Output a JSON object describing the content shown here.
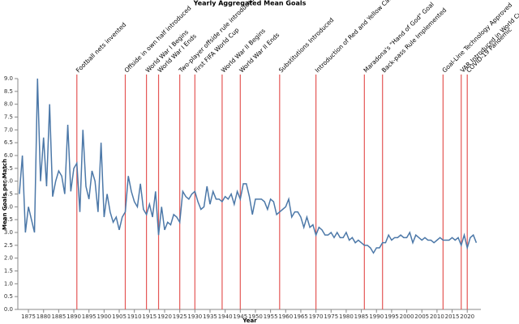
{
  "chart_data": {
    "type": "line",
    "title": "Yearly Aggregated Mean Goals",
    "x_label": "Year",
    "y_label": "Mean Goals per Match",
    "x": [
      1872,
      1873,
      1874,
      1875,
      1876,
      1877,
      1878,
      1879,
      1880,
      1881,
      1882,
      1883,
      1884,
      1885,
      1886,
      1887,
      1888,
      1889,
      1890,
      1891,
      1892,
      1893,
      1894,
      1895,
      1896,
      1897,
      1898,
      1899,
      1900,
      1901,
      1902,
      1903,
      1904,
      1905,
      1906,
      1907,
      1908,
      1909,
      1910,
      1911,
      1912,
      1913,
      1914,
      1915,
      1916,
      1917,
      1918,
      1919,
      1920,
      1921,
      1922,
      1923,
      1924,
      1925,
      1926,
      1927,
      1928,
      1929,
      1930,
      1931,
      1932,
      1933,
      1934,
      1935,
      1936,
      1937,
      1938,
      1939,
      1940,
      1941,
      1942,
      1943,
      1944,
      1945,
      1946,
      1947,
      1948,
      1949,
      1950,
      1951,
      1952,
      1953,
      1954,
      1955,
      1956,
      1957,
      1958,
      1959,
      1960,
      1961,
      1962,
      1963,
      1964,
      1965,
      1966,
      1967,
      1968,
      1969,
      1970,
      1971,
      1972,
      1973,
      1974,
      1975,
      1976,
      1977,
      1978,
      1979,
      1980,
      1981,
      1982,
      1983,
      1984,
      1985,
      1986,
      1987,
      1988,
      1989,
      1990,
      1991,
      1992,
      1993,
      1994,
      1995,
      1996,
      1997,
      1998,
      1999,
      2000,
      2001,
      2002,
      2003,
      2004,
      2005,
      2006,
      2007,
      2008,
      2009,
      2010,
      2011,
      2012,
      2013,
      2014,
      2015,
      2016,
      2017,
      2018,
      2019,
      2020,
      2021,
      2022,
      2023
    ],
    "series": [
      {
        "name": "Mean Goals per Match",
        "color": "#4c78a8",
        "values": [
          4.5,
          6.0,
          3.0,
          4.0,
          3.5,
          3.0,
          9.0,
          5.0,
          6.7,
          4.8,
          8.0,
          4.4,
          5.0,
          5.4,
          5.2,
          4.5,
          7.2,
          4.6,
          5.5,
          5.7,
          3.8,
          7.0,
          4.8,
          4.3,
          5.4,
          5.0,
          3.8,
          6.5,
          3.6,
          4.5,
          3.8,
          3.4,
          3.6,
          3.1,
          3.6,
          3.8,
          5.2,
          4.6,
          4.2,
          4.0,
          4.9,
          3.9,
          3.7,
          4.1,
          3.6,
          4.6,
          2.9,
          4.0,
          3.1,
          3.4,
          3.3,
          3.7,
          3.6,
          3.4,
          4.6,
          4.4,
          4.3,
          4.5,
          4.6,
          4.2,
          3.9,
          4.0,
          4.8,
          4.1,
          4.6,
          4.3,
          4.3,
          4.2,
          4.4,
          4.3,
          4.5,
          4.1,
          4.6,
          4.3,
          4.9,
          4.9,
          4.4,
          3.7,
          4.3,
          4.3,
          4.3,
          4.2,
          3.9,
          4.3,
          4.2,
          3.7,
          3.8,
          3.9,
          4.0,
          4.3,
          3.6,
          3.8,
          3.8,
          3.6,
          3.2,
          3.6,
          3.2,
          3.3,
          2.9,
          3.2,
          3.1,
          2.9,
          2.9,
          3.0,
          2.8,
          3.0,
          2.8,
          2.8,
          3.0,
          2.7,
          2.8,
          2.6,
          2.7,
          2.6,
          2.5,
          2.5,
          2.4,
          2.2,
          2.4,
          2.4,
          2.6,
          2.6,
          2.9,
          2.7,
          2.8,
          2.8,
          2.9,
          2.8,
          2.8,
          3.0,
          2.6,
          2.9,
          2.8,
          2.7,
          2.8,
          2.7,
          2.7,
          2.6,
          2.7,
          2.8,
          2.7,
          2.7,
          2.7,
          2.8,
          2.7,
          2.8,
          2.5,
          2.9,
          2.4,
          2.8,
          2.9,
          2.6
        ]
      }
    ],
    "annotations": [
      {
        "x": 1891,
        "label": "Football nets invented"
      },
      {
        "x": 1907,
        "label": "Offside in own half introduced"
      },
      {
        "x": 1914,
        "label": "World War I Begins"
      },
      {
        "x": 1918,
        "label": "World War I Ends"
      },
      {
        "x": 1925,
        "label": "Two-player offside rule introduced"
      },
      {
        "x": 1930,
        "label": "First FIFA World Cup"
      },
      {
        "x": 1939,
        "label": "World War II Begins"
      },
      {
        "x": 1945,
        "label": "World War II Ends"
      },
      {
        "x": 1958,
        "label": "Substitutions Introduced"
      },
      {
        "x": 1970,
        "label": "Introduction of Red and Yellow Cards"
      },
      {
        "x": 1986,
        "label": "Maradona's \"Hand of God\" Goal"
      },
      {
        "x": 1992,
        "label": "Back-pass Rule Implemented"
      },
      {
        "x": 2012,
        "label": "Goal-Line Technology Approved"
      },
      {
        "x": 2018,
        "label": "VAR Introduced in World Cup"
      },
      {
        "x": 2020,
        "label": "COVID-19 Pandemic"
      }
    ],
    "annotation_color": "#e45756",
    "xlim": [
      1871.5,
      2024.5
    ],
    "xticks": [
      1875,
      1880,
      1885,
      1890,
      1895,
      1900,
      1905,
      1910,
      1915,
      1920,
      1925,
      1930,
      1935,
      1940,
      1945,
      1950,
      1955,
      1960,
      1965,
      1970,
      1975,
      1980,
      1985,
      1990,
      1995,
      2000,
      2005,
      2010,
      2015,
      2020
    ],
    "ylim": [
      0,
      9
    ],
    "yticks": [
      {
        "value": 0,
        "label": "0.0"
      },
      {
        "value": 0.5,
        "label": "0.5"
      },
      {
        "value": 1,
        "label": "1.0"
      },
      {
        "value": 1.5,
        "label": "1.5"
      },
      {
        "value": 2,
        "label": "2.0"
      },
      {
        "value": 2.5,
        "label": "2.5"
      },
      {
        "value": 3,
        "label": "3.0"
      },
      {
        "value": 3.5,
        "label": "3.5"
      },
      {
        "value": 4,
        "label": "4.0"
      },
      {
        "value": 4.5,
        "label": "4.5"
      },
      {
        "value": 5,
        "label": "5.0"
      },
      {
        "value": 5.5,
        "label": "5.5"
      },
      {
        "value": 6,
        "label": "6.0"
      },
      {
        "value": 6.5,
        "label": "6.5"
      },
      {
        "value": 7,
        "label": "7.0"
      },
      {
        "value": 7.5,
        "label": "7.5"
      },
      {
        "value": 8,
        "label": "8.0"
      },
      {
        "value": 8.5,
        "label": "8.5"
      },
      {
        "value": 9,
        "label": "9.0"
      }
    ],
    "grid": false
  }
}
